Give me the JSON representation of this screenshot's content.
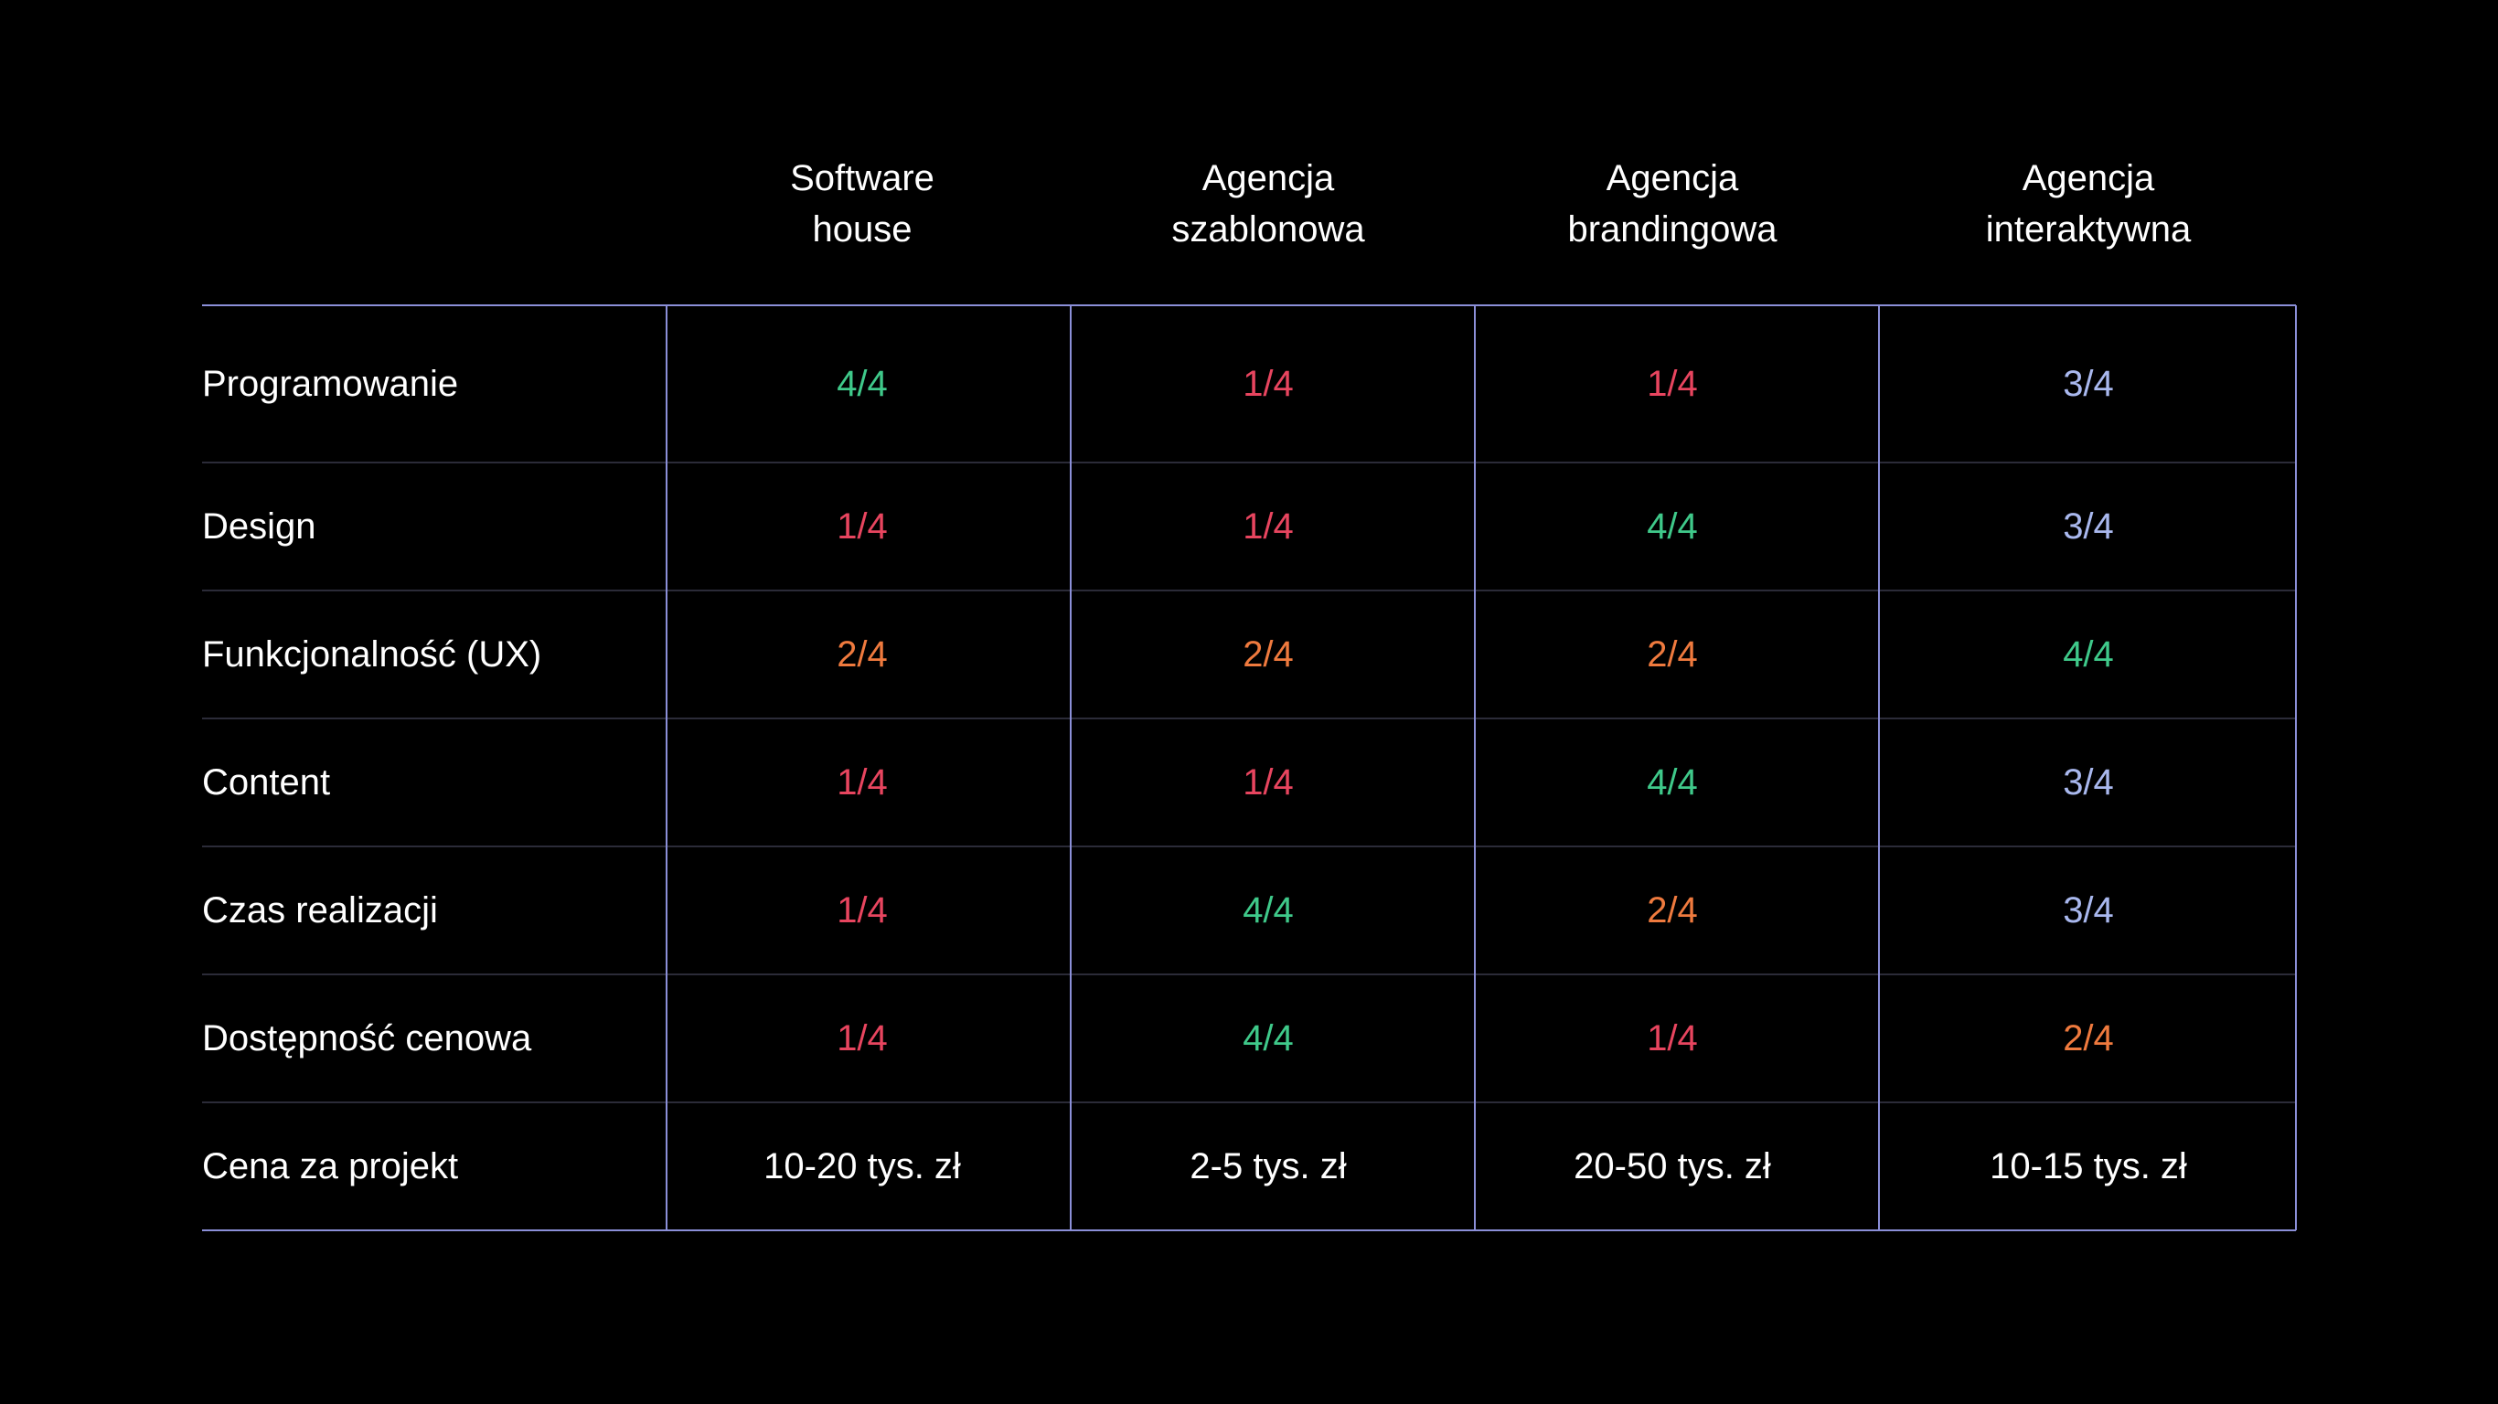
{
  "chart_data": {
    "type": "table",
    "columns": [
      "Software\nhouse",
      "Agencja\nszablonowa",
      "Agencja\nbrandingowa",
      "Agencja\ninteraktywna"
    ],
    "rows": [
      {
        "label": "Programowanie",
        "values": [
          "4/4",
          "1/4",
          "1/4",
          "3/4"
        ]
      },
      {
        "label": "Design",
        "values": [
          "1/4",
          "1/4",
          "4/4",
          "3/4"
        ]
      },
      {
        "label": "Funkcjonalność (UX)",
        "values": [
          "2/4",
          "2/4",
          "2/4",
          "4/4"
        ]
      },
      {
        "label": "Content",
        "values": [
          "1/4",
          "1/4",
          "4/4",
          "3/4"
        ]
      },
      {
        "label": "Czas realizacji",
        "values": [
          "1/4",
          "4/4",
          "2/4",
          "3/4"
        ]
      },
      {
        "label": "Dostępność cenowa",
        "values": [
          "1/4",
          "4/4",
          "1/4",
          "2/4"
        ]
      },
      {
        "label": "Cena za projekt",
        "values": [
          "10-20 tys. zł",
          "2-5 tys. zł",
          "20-50 tys. zł",
          "10-15 tys. zł"
        ]
      }
    ],
    "score_colors": {
      "1/4": "#e8455f",
      "2/4": "#ef7a3e",
      "3/4": "#a9b8ee",
      "4/4": "#3fc98a"
    },
    "colors": {
      "background": "#000000",
      "text": "#ffffff",
      "border": "#8b8fd8",
      "row_divider": "#2b2b38"
    }
  }
}
